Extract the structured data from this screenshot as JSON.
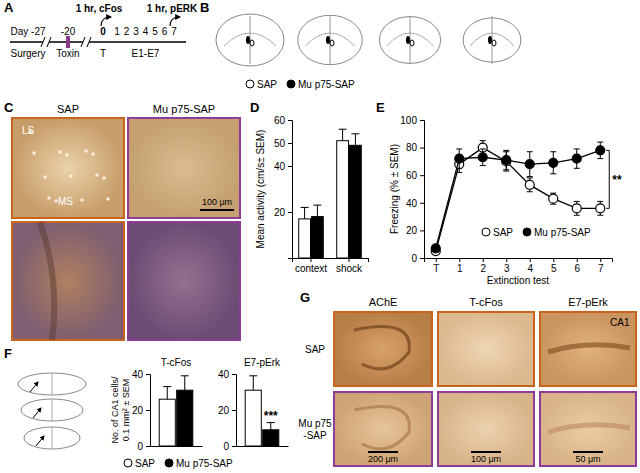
{
  "figure": {
    "panel_labels": [
      "A",
      "B",
      "C",
      "D",
      "E",
      "F",
      "G"
    ],
    "timeline": {
      "day_labels": [
        "Day -27",
        "-20",
        "0",
        "1",
        "2",
        "3",
        "4",
        "5",
        "6",
        "7"
      ],
      "event_labels": [
        "Surgery",
        "Toxin",
        "T",
        "E1-E7"
      ],
      "probe_labels": [
        "1 hr, cFos",
        "1 hr, pERK"
      ]
    },
    "legend": [
      {
        "name": "SAP",
        "marker": "open"
      },
      {
        "name": "Mu p75-SAP",
        "marker": "filled"
      }
    ],
    "panel_c": {
      "columns": [
        "SAP",
        "Mu p75-SAP"
      ],
      "regions": [
        "LS",
        "MS"
      ],
      "scale": "100 μm"
    },
    "panel_g": {
      "columns": [
        "AChE",
        "T-cFos",
        "E7-pErk"
      ],
      "rows": [
        [
          "SAP"
        ],
        [
          "Mu p75",
          "-SAP"
        ]
      ],
      "region": "CA1",
      "scales": [
        "200 μm",
        "100 μm",
        "50 μm"
      ]
    }
  },
  "chart_data": [
    {
      "type": "bar",
      "ylabel": "Mean activity (cm/s± SEM)",
      "categories": [
        "context",
        "shock"
      ],
      "series": [
        {
          "color": "#ffffff",
          "values": [
            17,
            51
          ],
          "errors": [
            5,
            5
          ]
        },
        {
          "color": "#000000",
          "values": [
            18,
            49
          ],
          "errors": [
            5,
            5
          ]
        }
      ],
      "ylim": [
        0,
        60
      ],
      "yticks": [
        20,
        40,
        50,
        60
      ]
    },
    {
      "type": "line",
      "ylabel": "Freezing (% ± SEM)",
      "xlabel": "Extinction test",
      "categories": [
        "T",
        "1",
        "2",
        "3",
        "4",
        "5",
        "6",
        "7"
      ],
      "series": [
        {
          "name": "SAP",
          "color": "#ffffff",
          "marker": "open",
          "values": [
            5,
            68,
            80,
            70,
            53,
            43,
            36,
            36
          ],
          "errors": [
            2,
            6,
            5,
            7,
            5,
            4,
            5,
            5
          ]
        },
        {
          "name": "Mu p75-SAP",
          "color": "#000000",
          "marker": "filled",
          "values": [
            7,
            72,
            73,
            71,
            68,
            69,
            72,
            78
          ],
          "errors": [
            2,
            7,
            6,
            7,
            9,
            8,
            7,
            6
          ]
        }
      ],
      "ylim": [
        0,
        100
      ],
      "yticks": [
        0,
        20,
        40,
        60,
        80,
        100
      ],
      "annotations": [
        "**"
      ],
      "legend": "lower right"
    },
    {
      "type": "bar",
      "title": "T-cFos",
      "ylabel": [
        "No. of CA1 cells/",
        "0.1 mm² ± SEM"
      ],
      "categories": [
        null
      ],
      "series": [
        {
          "color": "#ffffff",
          "values": [
            26
          ],
          "errors": [
            7
          ]
        },
        {
          "color": "#000000",
          "values": [
            31
          ],
          "errors": [
            8
          ]
        }
      ],
      "ylim": [
        0,
        40
      ],
      "yticks": [
        0,
        20,
        40
      ]
    },
    {
      "type": "bar",
      "title": "E7-pErk",
      "categories": [
        null
      ],
      "series": [
        {
          "color": "#ffffff",
          "values": [
            31
          ],
          "errors": [
            8
          ]
        },
        {
          "color": "#000000",
          "values": [
            9
          ],
          "errors": [
            4
          ]
        }
      ],
      "ylim": [
        0,
        40
      ],
      "yticks": [
        0,
        20,
        40
      ],
      "annotations": [
        "***"
      ]
    }
  ]
}
